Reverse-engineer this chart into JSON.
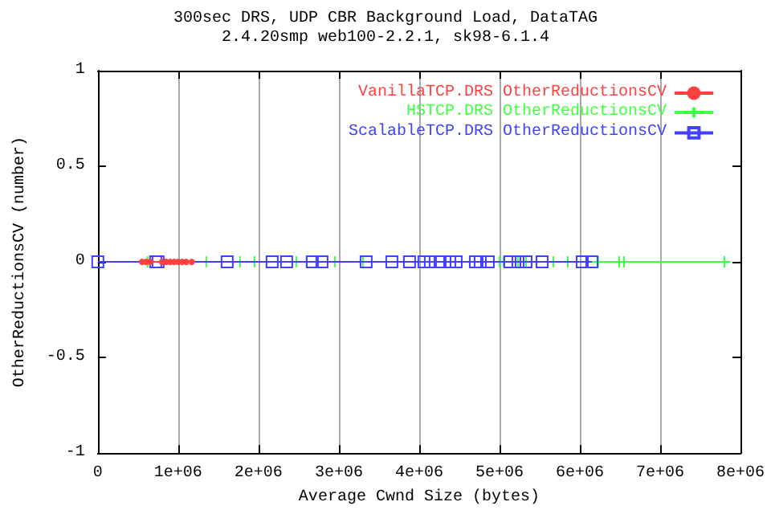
{
  "chart_data": {
    "type": "line",
    "title": "300sec DRS, UDP CBR Background Load, DataTAG",
    "subtitle": "2.4.20smp web100-2.2.1, sk98-6.1.4",
    "xlabel": "Average Cwnd Size (bytes)",
    "ylabel": "OtherReductionsCV (number)",
    "series": [
      {
        "name": "VanillaTCP.DRS OtherReductionsCV",
        "color": "#ff4040",
        "marker": "circle",
        "x": [
          550000,
          600000,
          650000,
          800000,
          850000,
          900000,
          950000,
          1000000,
          1050000,
          1100000,
          1170000
        ],
        "values": [
          0,
          0,
          0,
          0,
          0,
          0,
          0,
          0,
          0,
          0,
          0
        ]
      },
      {
        "name": "HSTCP.DRS OtherReductionsCV",
        "color": "#40ff40",
        "marker": "cross",
        "x": [
          620000,
          1350000,
          1770000,
          1950000,
          2470000,
          2600000,
          2950000,
          3300000,
          5000000,
          5050000,
          5230000,
          5330000,
          5670000,
          5850000,
          6230000,
          6490000,
          6550000,
          7800000
        ],
        "values": [
          0,
          0,
          0,
          0,
          0,
          0,
          0,
          0,
          0,
          0,
          0,
          0,
          0,
          0,
          0,
          0,
          0,
          0
        ]
      },
      {
        "name": "ScalableTCP.DRS OtherReductionsCV",
        "color": "#4040ff",
        "marker": "square",
        "x": [
          0,
          720000,
          750000,
          1610000,
          2170000,
          2350000,
          2670000,
          2790000,
          3340000,
          3660000,
          3880000,
          4060000,
          4140000,
          4260000,
          4380000,
          4460000,
          4700000,
          4760000,
          4860000,
          5130000,
          5230000,
          5330000,
          5530000,
          6030000,
          6150000
        ],
        "values": [
          0,
          0,
          0,
          0,
          0,
          0,
          0,
          0,
          0,
          0,
          0,
          0,
          0,
          0,
          0,
          0,
          0,
          0,
          0,
          0,
          0,
          0,
          0,
          0,
          0
        ]
      }
    ],
    "xlim": [
      0,
      8000000
    ],
    "xticks": [
      0,
      {
        "value": 1000000,
        "label": "1e+06"
      },
      {
        "value": 2000000,
        "label": "2e+06"
      },
      {
        "value": 3000000,
        "label": "3e+06"
      },
      {
        "value": 4000000,
        "label": "4e+06"
      },
      {
        "value": 5000000,
        "label": "5e+06"
      },
      {
        "value": 6000000,
        "label": "6e+06"
      },
      {
        "value": 7000000,
        "label": "7e+06"
      },
      {
        "value": 8000000,
        "label": "8e+06"
      }
    ],
    "ylim": [
      -1,
      1
    ],
    "yticks": [
      -1,
      -0.5,
      0,
      0.5,
      1
    ],
    "grid": "x",
    "legend": "top right"
  }
}
